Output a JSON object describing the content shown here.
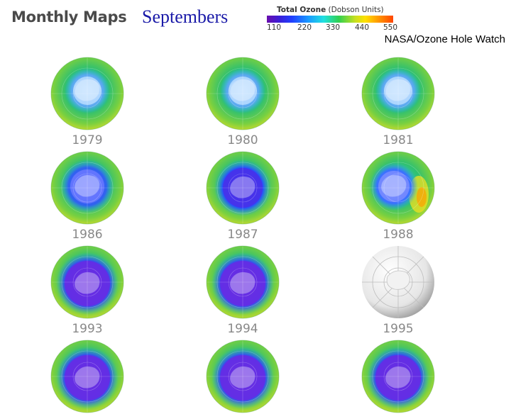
{
  "header": {
    "title": "Monthly Maps",
    "subtitle": "Septembers",
    "credit": "NASA/Ozone Hole Watch"
  },
  "legend": {
    "title_bold": "Total Ozone",
    "title_rest": "(Dobson Units)",
    "ticks": [
      "110",
      "220",
      "330",
      "440",
      "550"
    ]
  },
  "maps": [
    {
      "year": "1979",
      "hole": "small"
    },
    {
      "year": "1980",
      "hole": "small"
    },
    {
      "year": "1981",
      "hole": "small"
    },
    {
      "year": "1986",
      "hole": "medium"
    },
    {
      "year": "1987",
      "hole": "large"
    },
    {
      "year": "1988",
      "hole": "medium-offset"
    },
    {
      "year": "1993",
      "hole": "very-large"
    },
    {
      "year": "1994",
      "hole": "very-large"
    },
    {
      "year": "1995",
      "hole": "no-data"
    },
    {
      "year": "",
      "hole": "very-large"
    },
    {
      "year": "",
      "hole": "very-large"
    },
    {
      "year": "",
      "hole": "very-large"
    }
  ]
}
